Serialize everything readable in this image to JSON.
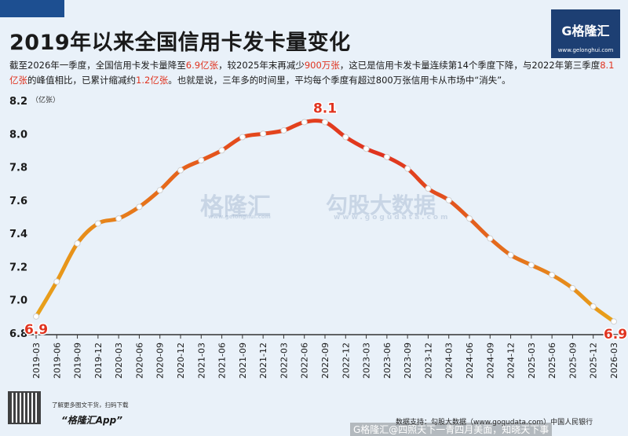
{
  "title": "2019年以来全国信用卡发卡量变化",
  "logo": {
    "brand": "G格隆汇",
    "site": "www.gelonghui.com"
  },
  "description": {
    "p1": "截至2026年一季度，全国信用卡发卡量降至",
    "v1": "6.9亿张",
    "p2": "，较2025年末再减少",
    "v2": "900万张",
    "p3": "，这已是信用卡发卡量连续第14个季度下降，与2022年第三季度",
    "v3": "8.1亿张",
    "p4": "的峰值相比，已累计缩减约",
    "v4": "1.2亿张",
    "p5": "。也就是说，三年多的时间里，平均每个季度有超过800万张信用卡从市场中“消失”。"
  },
  "watermarks": {
    "left": "格隆汇",
    "left_site": "www.gelonghui.com",
    "right": "勾股大数据",
    "right_site": "www.gogudata.com"
  },
  "footer": {
    "tip": "了解更多图文干货，扫码下载",
    "app": "“格隆汇App”",
    "source": "数据支持：勾股大数据（www.gogudata.com）中国人民银行",
    "overlay": "G格隆汇@四照天下一青四月美面，知晓天下事"
  },
  "colors": {
    "line_start": "#e8a21a",
    "line_mid": "#e23a1e",
    "label": "#e0331f",
    "title_bar": "#1d4f91"
  },
  "chart_data": {
    "type": "line",
    "ylabel": "（亿张）",
    "ylim": [
      6.8,
      8.2
    ],
    "yticks": [
      "8.2",
      "8.0",
      "7.8",
      "7.6",
      "7.4",
      "7.2",
      "7.0",
      "6.8"
    ],
    "grid": false,
    "categories": [
      "2019-03",
      "2019-06",
      "2019-09",
      "2019-12",
      "2020-03",
      "2020-06",
      "2020-09",
      "2020-12",
      "2021-03",
      "2021-06",
      "2021-09",
      "2021-12",
      "2022-03",
      "2022-06",
      "2022-09",
      "2022-12",
      "2023-03",
      "2023-06",
      "2023-09",
      "2023-12",
      "2024-03",
      "2024-06",
      "2024-09",
      "2024-12",
      "2025-03",
      "2025-06",
      "2025-09",
      "2025-12",
      "2026-03"
    ],
    "values": [
      6.9,
      7.11,
      7.34,
      7.46,
      7.49,
      7.56,
      7.66,
      7.78,
      7.84,
      7.9,
      7.98,
      8.0,
      8.02,
      8.07,
      8.07,
      7.98,
      7.91,
      7.86,
      7.79,
      7.67,
      7.6,
      7.49,
      7.37,
      7.27,
      7.21,
      7.15,
      7.07,
      6.96,
      6.87
    ],
    "annotations": [
      {
        "index": 0,
        "text": "6.9"
      },
      {
        "index": 14,
        "text": "8.1"
      },
      {
        "index": 28,
        "text": "6.9"
      }
    ]
  }
}
